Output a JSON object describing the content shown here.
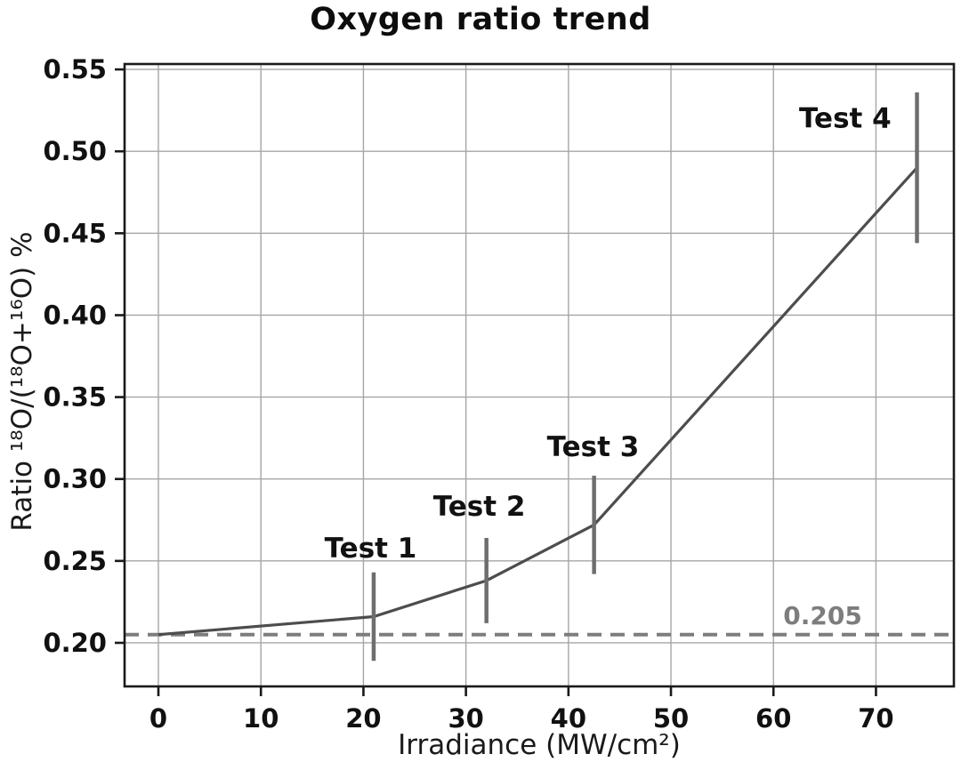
{
  "figure": {
    "title_display": "Oxygen ratio trend",
    "xlabel_display": "Irradiance (MW/cm²)",
    "ylabel_display": "Ratio ¹⁸O/(¹⁸O+¹⁶O) %"
  },
  "chart_data": {
    "type": "line",
    "title": "Oxygen ratio trend",
    "xlabel": "Irradiance (MW/cm2)",
    "ylabel": "Ratio 18O/(18O+16O) %",
    "x": [
      0,
      21,
      32,
      42.5,
      74
    ],
    "series": [
      {
        "name": "Oxygen ratio trend",
        "values": [
          0.205,
          0.216,
          0.238,
          0.272,
          0.49
        ],
        "yerr": [
          0,
          0.027,
          0.026,
          0.03,
          0.046
        ],
        "point_labels": [
          "",
          "Test 1",
          "Test 2",
          "Test 3",
          "Test 4"
        ]
      }
    ],
    "reference_line": {
      "y": 0.205,
      "label": "0.205",
      "label_x": 64.8,
      "label_y": 0.2165
    },
    "annotations": [
      {
        "text": "Test 1",
        "x": 20.7,
        "y": 0.2575
      },
      {
        "text": "Test 2",
        "x": 31.3,
        "y": 0.283
      },
      {
        "text": "Test 3",
        "x": 42.4,
        "y": 0.3195
      },
      {
        "text": "Test 4",
        "x": 67.0,
        "y": 0.52
      }
    ],
    "xlim": [
      -3.3,
      77.6
    ],
    "ylim": [
      0.1734,
      0.5533
    ],
    "xticks": [
      {
        "v": 0,
        "label": "0"
      },
      {
        "v": 10,
        "label": "10"
      },
      {
        "v": 20,
        "label": "20"
      },
      {
        "v": 30,
        "label": "30"
      },
      {
        "v": 40,
        "label": "40"
      },
      {
        "v": 50,
        "label": "50"
      },
      {
        "v": 60,
        "label": "60"
      },
      {
        "v": 70,
        "label": "70"
      }
    ],
    "yticks": [
      {
        "v": 0.2,
        "label": "0.20"
      },
      {
        "v": 0.25,
        "label": "0.25"
      },
      {
        "v": 0.3,
        "label": "0.30"
      },
      {
        "v": 0.35,
        "label": "0.35"
      },
      {
        "v": 0.4,
        "label": "0.40"
      },
      {
        "v": 0.45,
        "label": "0.45"
      },
      {
        "v": 0.5,
        "label": "0.50"
      },
      {
        "v": 0.55,
        "label": "0.55"
      }
    ],
    "grid": true,
    "legend": "none",
    "colors": {
      "line": "#4d4d4d",
      "error_bar": "#6e6e6e",
      "grid": "#a6a6a6",
      "reference_line": "#7d7d7d",
      "reference_label": "#7d7d7d",
      "annotation": "#111111",
      "spine": "#1a1a1a",
      "tick_label": "#111111",
      "background": "#ffffff"
    }
  }
}
